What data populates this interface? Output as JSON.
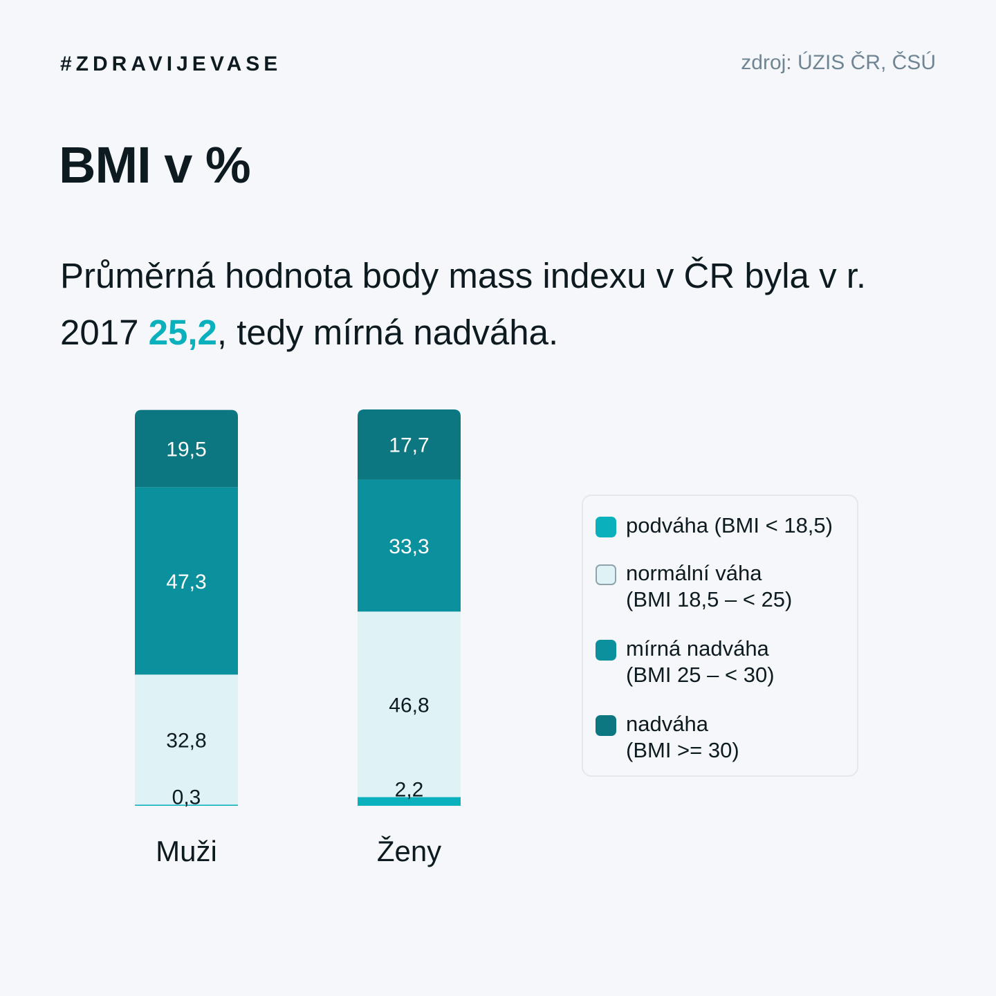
{
  "header": {
    "hashtag": "#ZDRAVIJEVASE",
    "source": "zdroj: ÚZIS ČR, ČSÚ"
  },
  "title": "BMI v %",
  "subtitle": {
    "part1": "Průměrná hodnota body mass indexu v ČR byla v r. 2017 ",
    "highlight": "25,2",
    "part2": ", tedy mírná nadváha."
  },
  "colors": {
    "background": "#f5f7fb",
    "podvaha": "#0bb0bd",
    "normalni": "#dff3f6",
    "mirna_nadvaha": "#0b919d",
    "nadvaha": "#0c7681",
    "highlight": "#0bb0bd"
  },
  "legend": [
    {
      "line1": "podváha (BMI < 18,5)",
      "line2": "",
      "color": "#0bb0bd"
    },
    {
      "line1": "normální váha",
      "line2": "(BMI 18,5 – < 25)",
      "color": "#dff3f6"
    },
    {
      "line1": "mírná nadváha",
      "line2": "(BMI 25 – < 30)",
      "color": "#0b919d"
    },
    {
      "line1": "nadváha",
      "line2": "(BMI >= 30)",
      "color": "#0c7681"
    }
  ],
  "chart_data": {
    "type": "bar",
    "stacked": true,
    "categories": [
      "Muži",
      "Ženy"
    ],
    "series": [
      {
        "name": "podváha (BMI < 18,5)",
        "values": [
          0.3,
          2.2
        ],
        "labels": [
          "0,3",
          "2,2"
        ],
        "color": "#0bb0bd",
        "label_color": "#0d1b21"
      },
      {
        "name": "normální váha (BMI 18,5 – < 25)",
        "values": [
          32.8,
          46.8
        ],
        "labels": [
          "32,8",
          "46,8"
        ],
        "color": "#dff3f6",
        "label_color": "#0d1b21"
      },
      {
        "name": "mírná nadváha (BMI 25 – < 30)",
        "values": [
          47.3,
          33.3
        ],
        "labels": [
          "47,3",
          "33,3"
        ],
        "color": "#0b919d",
        "label_color": "#ffffff"
      },
      {
        "name": "nadváha (BMI >= 30)",
        "values": [
          19.5,
          17.7
        ],
        "labels": [
          "19,5",
          "17,7"
        ],
        "color": "#0c7681",
        "label_color": "#ffffff"
      }
    ],
    "ylim": [
      0,
      100
    ],
    "grid": false,
    "legend_position": "right"
  }
}
